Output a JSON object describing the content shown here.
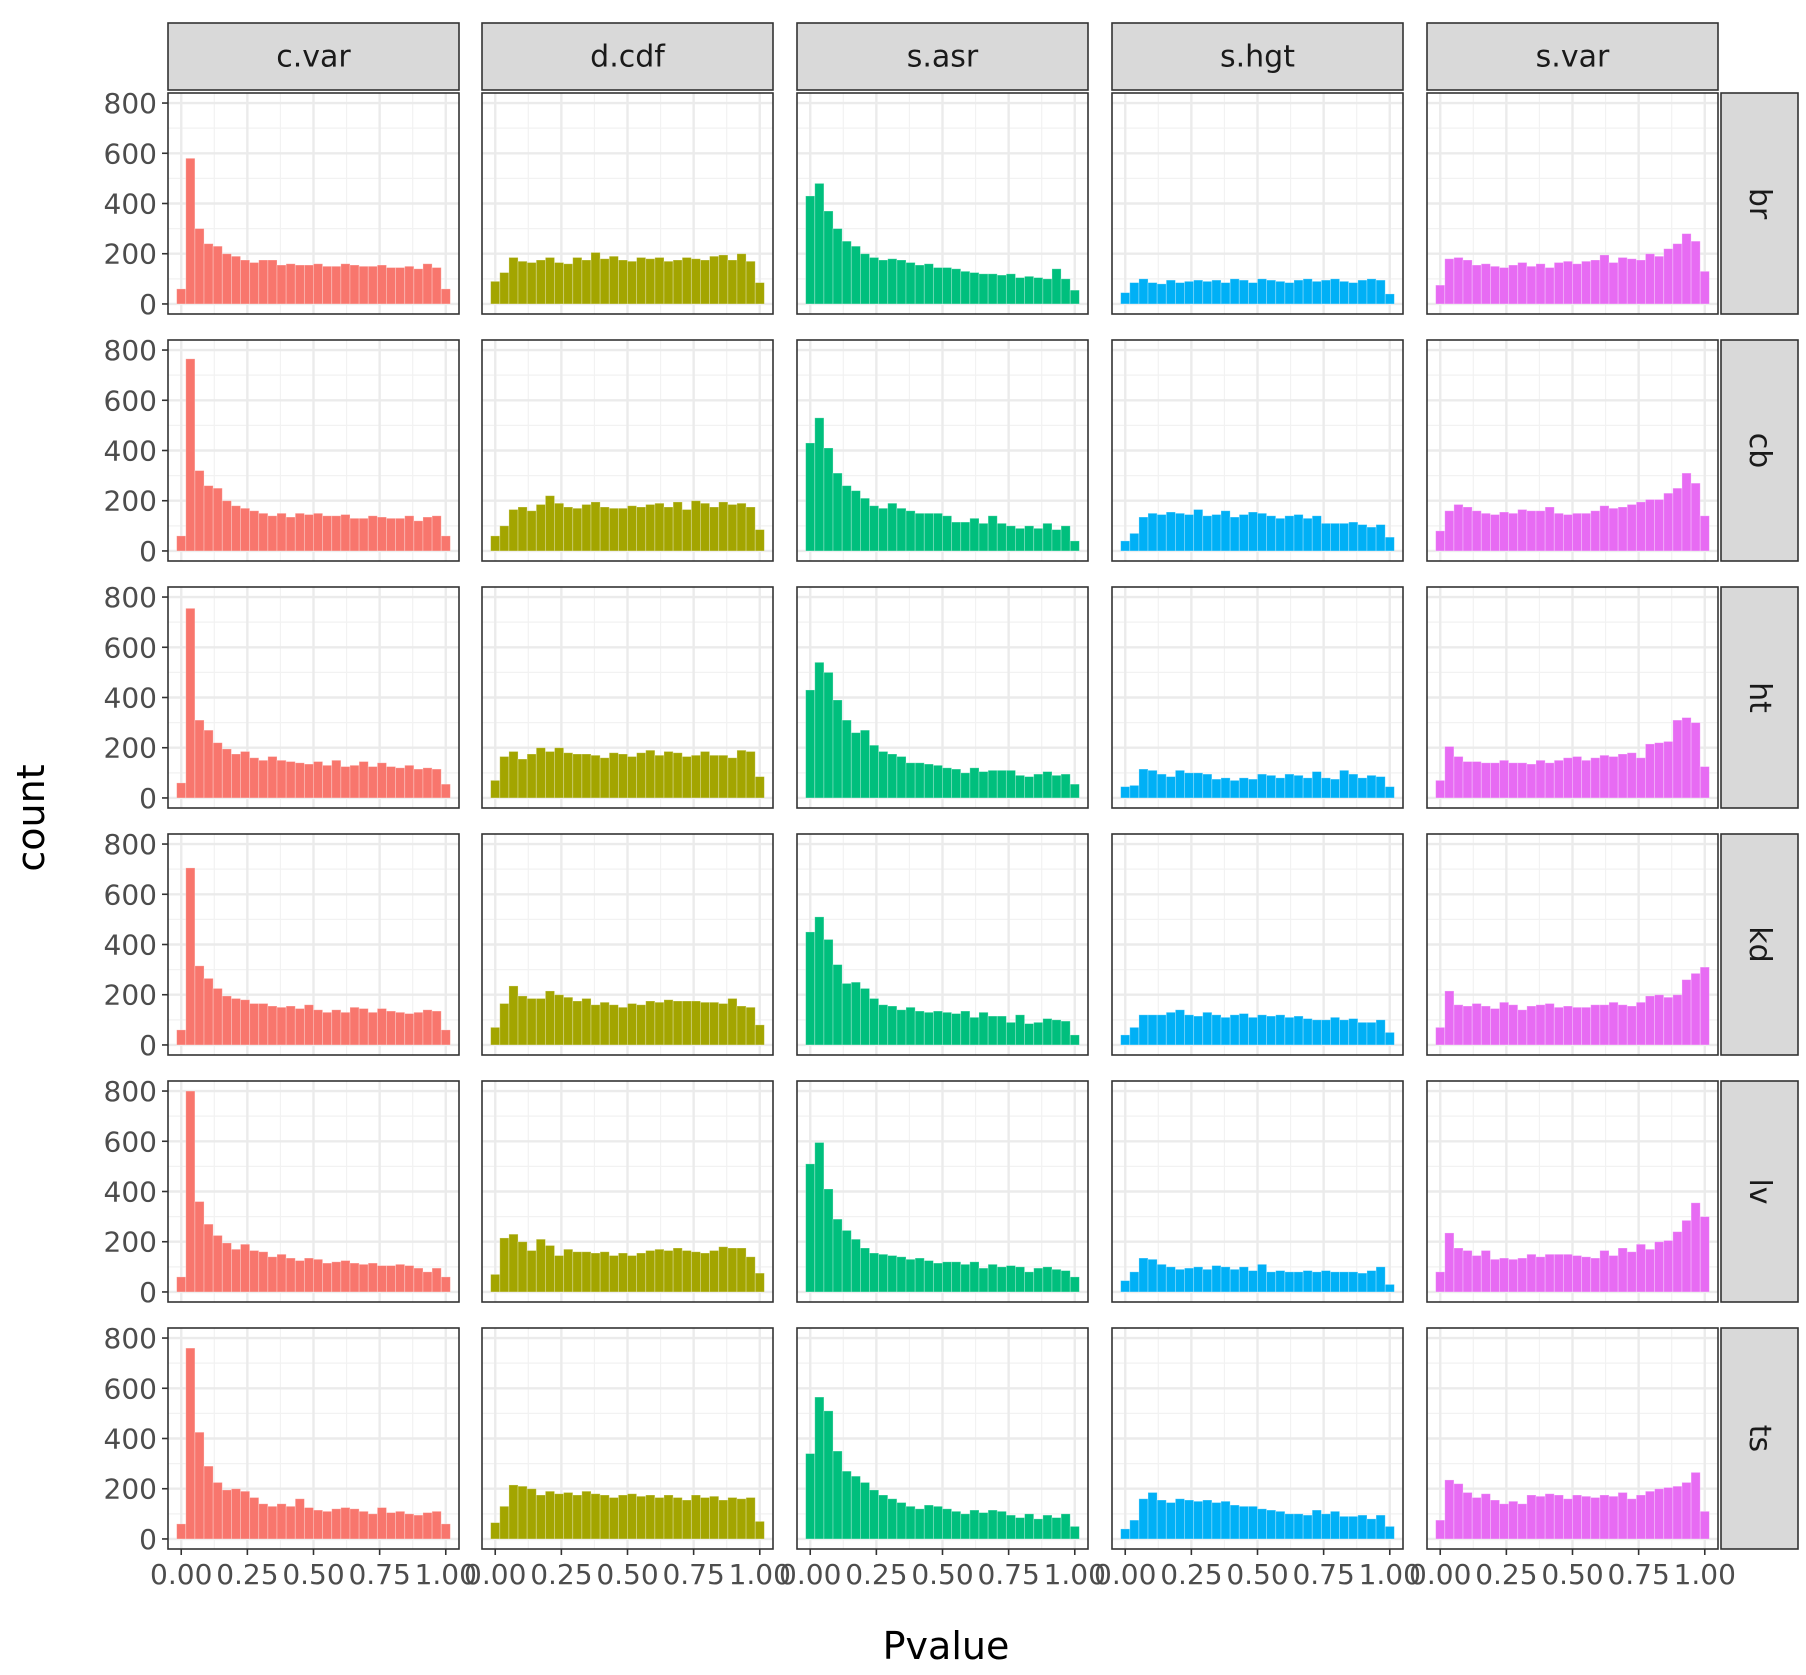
{
  "chart_data": {
    "type": "bar",
    "xlabel": "Pvalue",
    "ylabel": "count",
    "bins_x": [
      0.0,
      0.0345,
      0.069,
      0.1034,
      0.1379,
      0.1724,
      0.2069,
      0.2414,
      0.2759,
      0.3103,
      0.3448,
      0.3793,
      0.4138,
      0.4483,
      0.4828,
      0.5172,
      0.5517,
      0.5862,
      0.6207,
      0.6552,
      0.6897,
      0.7241,
      0.7586,
      0.7931,
      0.8276,
      0.8621,
      0.8966,
      0.931,
      0.9655,
      1.0
    ],
    "xlim": [
      -0.05,
      1.05
    ],
    "ylim": [
      -40,
      840
    ],
    "x_ticks": [
      "0.00",
      "0.25",
      "0.50",
      "0.75",
      "1.00"
    ],
    "x_tick_values": [
      0,
      0.25,
      0.5,
      0.75,
      1.0
    ],
    "y_ticks": [
      "0",
      "200",
      "400",
      "600",
      "800"
    ],
    "y_tick_values": [
      0,
      200,
      400,
      600,
      800
    ],
    "grid": true,
    "legend": "none",
    "columns": [
      "c.var",
      "d.cdf",
      "s.asr",
      "s.hgt",
      "s.var"
    ],
    "rows": [
      "br",
      "cb",
      "ht",
      "kd",
      "lv",
      "ts"
    ],
    "colors": {
      "c.var": "#F8766D",
      "d.cdf": "#A3A500",
      "s.asr": "#00BF7D",
      "s.hgt": "#00B0F6",
      "s.var": "#E76BF3"
    },
    "panels": [
      [
        [
          60,
          580,
          300,
          240,
          230,
          200,
          190,
          175,
          165,
          175,
          175,
          155,
          160,
          155,
          155,
          160,
          150,
          150,
          160,
          155,
          150,
          150,
          155,
          145,
          145,
          150,
          140,
          160,
          145,
          60
        ],
        [
          90,
          125,
          185,
          170,
          165,
          175,
          185,
          165,
          160,
          185,
          175,
          205,
          180,
          190,
          175,
          170,
          185,
          180,
          185,
          170,
          175,
          185,
          180,
          175,
          190,
          195,
          175,
          200,
          170,
          85
        ],
        [
          430,
          480,
          370,
          300,
          250,
          230,
          200,
          185,
          175,
          180,
          175,
          165,
          155,
          160,
          145,
          145,
          140,
          130,
          125,
          120,
          120,
          115,
          120,
          105,
          110,
          105,
          100,
          140,
          100,
          55
        ],
        [
          45,
          85,
          100,
          85,
          80,
          95,
          85,
          90,
          95,
          90,
          95,
          85,
          100,
          95,
          85,
          100,
          95,
          90,
          85,
          95,
          100,
          90,
          95,
          100,
          90,
          85,
          95,
          100,
          95,
          40
        ],
        [
          75,
          180,
          185,
          175,
          155,
          160,
          150,
          145,
          155,
          165,
          150,
          160,
          145,
          165,
          170,
          160,
          170,
          175,
          195,
          165,
          185,
          180,
          175,
          200,
          190,
          220,
          240,
          280,
          250,
          130
        ]
      ],
      [
        [
          60,
          765,
          320,
          260,
          250,
          200,
          180,
          170,
          160,
          150,
          140,
          150,
          135,
          150,
          145,
          150,
          140,
          140,
          145,
          130,
          130,
          140,
          135,
          130,
          130,
          140,
          120,
          135,
          140,
          60
        ],
        [
          60,
          100,
          165,
          175,
          160,
          185,
          220,
          190,
          175,
          170,
          185,
          195,
          175,
          170,
          170,
          180,
          175,
          185,
          190,
          175,
          195,
          165,
          200,
          190,
          175,
          195,
          185,
          190,
          175,
          85
        ],
        [
          430,
          530,
          410,
          310,
          260,
          240,
          210,
          180,
          170,
          190,
          170,
          160,
          150,
          150,
          150,
          140,
          115,
          115,
          130,
          110,
          140,
          110,
          100,
          90,
          100,
          90,
          110,
          85,
          100,
          40
        ],
        [
          40,
          70,
          135,
          150,
          145,
          155,
          150,
          145,
          165,
          140,
          145,
          160,
          135,
          145,
          155,
          150,
          140,
          130,
          140,
          145,
          130,
          140,
          110,
          110,
          110,
          115,
          105,
          95,
          105,
          55
        ],
        [
          80,
          160,
          185,
          175,
          160,
          150,
          145,
          155,
          150,
          165,
          160,
          160,
          175,
          150,
          145,
          150,
          150,
          160,
          180,
          170,
          175,
          185,
          195,
          205,
          205,
          230,
          250,
          310,
          270,
          140
        ]
      ],
      [
        [
          60,
          755,
          310,
          270,
          220,
          195,
          175,
          185,
          160,
          150,
          165,
          150,
          145,
          140,
          135,
          145,
          130,
          150,
          125,
          130,
          145,
          125,
          140,
          125,
          120,
          130,
          115,
          120,
          115,
          55
        ],
        [
          70,
          165,
          185,
          155,
          175,
          200,
          185,
          200,
          180,
          175,
          175,
          170,
          160,
          180,
          175,
          165,
          180,
          190,
          170,
          185,
          180,
          165,
          170,
          185,
          170,
          170,
          160,
          190,
          185,
          85
        ],
        [
          430,
          540,
          500,
          390,
          310,
          260,
          270,
          210,
          185,
          175,
          165,
          140,
          140,
          135,
          130,
          120,
          115,
          100,
          120,
          105,
          110,
          110,
          110,
          90,
          85,
          95,
          105,
          90,
          95,
          55
        ],
        [
          45,
          50,
          115,
          110,
          95,
          85,
          110,
          100,
          100,
          95,
          75,
          80,
          70,
          80,
          75,
          95,
          90,
          80,
          95,
          90,
          80,
          105,
          80,
          75,
          110,
          95,
          80,
          90,
          85,
          45
        ],
        [
          70,
          205,
          165,
          145,
          145,
          140,
          140,
          150,
          140,
          140,
          135,
          150,
          140,
          150,
          160,
          165,
          150,
          160,
          170,
          165,
          175,
          180,
          160,
          215,
          220,
          225,
          310,
          320,
          300,
          125
        ]
      ],
      [
        [
          60,
          705,
          315,
          265,
          225,
          195,
          185,
          180,
          165,
          165,
          155,
          150,
          155,
          145,
          160,
          140,
          130,
          140,
          130,
          150,
          145,
          130,
          145,
          135,
          130,
          125,
          130,
          140,
          135,
          60
        ],
        [
          70,
          165,
          235,
          195,
          185,
          185,
          215,
          200,
          190,
          175,
          185,
          160,
          170,
          160,
          150,
          165,
          160,
          175,
          170,
          180,
          175,
          175,
          175,
          170,
          170,
          165,
          185,
          155,
          150,
          80
        ],
        [
          450,
          510,
          420,
          320,
          245,
          250,
          225,
          185,
          160,
          155,
          140,
          150,
          135,
          130,
          135,
          130,
          125,
          135,
          110,
          130,
          115,
          115,
          90,
          120,
          85,
          90,
          105,
          100,
          95,
          40
        ],
        [
          40,
          70,
          120,
          120,
          120,
          130,
          140,
          120,
          115,
          130,
          120,
          110,
          120,
          125,
          110,
          120,
          115,
          120,
          110,
          115,
          105,
          100,
          100,
          110,
          100,
          105,
          90,
          90,
          100,
          50
        ],
        [
          70,
          215,
          160,
          155,
          165,
          155,
          145,
          170,
          160,
          140,
          155,
          160,
          165,
          150,
          155,
          150,
          150,
          160,
          160,
          170,
          160,
          155,
          170,
          195,
          200,
          190,
          200,
          260,
          285,
          310
        ]
      ],
      [
        [
          60,
          800,
          360,
          270,
          225,
          195,
          170,
          190,
          165,
          160,
          140,
          150,
          135,
          125,
          135,
          130,
          115,
          120,
          125,
          115,
          110,
          115,
          105,
          105,
          110,
          105,
          95,
          80,
          95,
          60
        ],
        [
          70,
          215,
          230,
          200,
          165,
          210,
          185,
          145,
          170,
          160,
          160,
          155,
          160,
          145,
          155,
          145,
          155,
          165,
          170,
          165,
          175,
          165,
          160,
          155,
          165,
          180,
          175,
          175,
          140,
          75
        ],
        [
          510,
          595,
          410,
          290,
          245,
          210,
          175,
          155,
          150,
          145,
          140,
          130,
          135,
          125,
          115,
          120,
          120,
          110,
          120,
          95,
          110,
          100,
          105,
          100,
          80,
          95,
          100,
          90,
          85,
          60
        ],
        [
          45,
          80,
          135,
          130,
          110,
          100,
          90,
          95,
          100,
          90,
          105,
          100,
          90,
          100,
          85,
          110,
          80,
          85,
          80,
          80,
          85,
          80,
          85,
          80,
          80,
          80,
          75,
          85,
          100,
          30
        ],
        [
          80,
          235,
          175,
          165,
          145,
          165,
          130,
          135,
          130,
          135,
          150,
          140,
          150,
          150,
          150,
          145,
          140,
          135,
          165,
          145,
          175,
          160,
          190,
          170,
          200,
          205,
          240,
          285,
          355,
          300
        ]
      ],
      [
        [
          60,
          760,
          425,
          290,
          225,
          195,
          200,
          190,
          165,
          140,
          130,
          140,
          130,
          160,
          125,
          115,
          110,
          120,
          125,
          120,
          110,
          100,
          125,
          105,
          110,
          100,
          95,
          105,
          110,
          60
        ],
        [
          65,
          130,
          215,
          210,
          200,
          175,
          190,
          180,
          185,
          175,
          190,
          180,
          175,
          165,
          175,
          180,
          170,
          175,
          165,
          175,
          165,
          155,
          175,
          165,
          170,
          155,
          165,
          160,
          165,
          70
        ],
        [
          340,
          565,
          510,
          350,
          270,
          250,
          225,
          195,
          175,
          160,
          145,
          130,
          120,
          135,
          130,
          120,
          110,
          100,
          115,
          105,
          115,
          110,
          95,
          85,
          100,
          80,
          95,
          85,
          100,
          50
        ],
        [
          40,
          75,
          160,
          185,
          155,
          145,
          160,
          155,
          150,
          155,
          145,
          150,
          135,
          130,
          130,
          120,
          115,
          110,
          100,
          100,
          95,
          115,
          100,
          110,
          90,
          90,
          95,
          80,
          95,
          50
        ],
        [
          75,
          235,
          220,
          185,
          165,
          180,
          155,
          140,
          150,
          140,
          175,
          170,
          180,
          175,
          160,
          175,
          170,
          165,
          175,
          170,
          185,
          160,
          175,
          190,
          200,
          205,
          210,
          225,
          265,
          110
        ]
      ]
    ]
  }
}
